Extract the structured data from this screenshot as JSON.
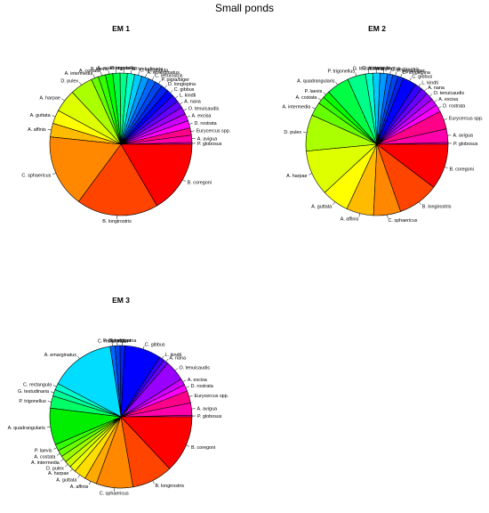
{
  "figure": {
    "title": "Small ponds"
  },
  "chart_data": [
    {
      "type": "pie",
      "title": "EM 1",
      "slices": [
        {
          "label": "P. globosus",
          "value": 0.4,
          "color": "#ff00c8"
        },
        {
          "label": "A. avigua",
          "value": 1.6,
          "color": "#ff00aa"
        },
        {
          "label": "Eurycercus spp.",
          "value": 1.6,
          "color": "#ff0088"
        },
        {
          "label": "D. rostrata",
          "value": 1.6,
          "color": "#ff00ff"
        },
        {
          "label": "A. excisa",
          "value": 1.6,
          "color": "#cc00ff"
        },
        {
          "label": "O. tenuicaudis",
          "value": 1.6,
          "color": "#9900ff"
        },
        {
          "label": "A. nana",
          "value": 1.6,
          "color": "#6600ff"
        },
        {
          "label": "L. kindti",
          "value": 1.6,
          "color": "#3300ff"
        },
        {
          "label": "C. gibbus",
          "value": 1.6,
          "color": "#0000ff"
        },
        {
          "label": "D. longispina",
          "value": 1.6,
          "color": "#0022ee"
        },
        {
          "label": "P. pigra/biger",
          "value": 1.6,
          "color": "#0044ee"
        },
        {
          "label": "C. rectirostris",
          "value": 1.6,
          "color": "#0066ff"
        },
        {
          "label": "A. emarginatus",
          "value": 1.6,
          "color": "#0099ff"
        },
        {
          "label": "C. rectangula",
          "value": 1.6,
          "color": "#00ccff"
        },
        {
          "label": "G. testudinaria",
          "value": 1.6,
          "color": "#00ffcc"
        },
        {
          "label": "P. trigonellus",
          "value": 1.6,
          "color": "#00ff88"
        },
        {
          "label": "A. quadrangularis",
          "value": 1.6,
          "color": "#00ff44"
        },
        {
          "label": "P. laevis",
          "value": 1.6,
          "color": "#00ff00"
        },
        {
          "label": "A. costata",
          "value": 1.6,
          "color": "#33ff00"
        },
        {
          "label": "A. intermedia",
          "value": 1.6,
          "color": "#66ff00"
        },
        {
          "label": "D. pulex",
          "value": 5,
          "color": "#aaff00"
        },
        {
          "label": "A. harpae",
          "value": 5,
          "color": "#ddff00"
        },
        {
          "label": "A. guttata",
          "value": 3,
          "color": "#ffff00"
        },
        {
          "label": "A. affinis",
          "value": 3,
          "color": "#ffbb00"
        },
        {
          "label": "C. sphaericus",
          "value": 16,
          "color": "#ff8800"
        },
        {
          "label": "B. longirostris",
          "value": 18,
          "color": "#ff4400"
        },
        {
          "label": "B. coregoni",
          "value": 16,
          "color": "#ff0000"
        }
      ]
    },
    {
      "type": "pie",
      "title": "EM 2",
      "slices": [
        {
          "label": "P. globosus",
          "value": 0.4,
          "color": "#ff00c8"
        },
        {
          "label": "A. avigua",
          "value": 3,
          "color": "#ff00aa"
        },
        {
          "label": "Eurycercus spp.",
          "value": 4,
          "color": "#ff0088"
        },
        {
          "label": "D. rostrata",
          "value": 1.6,
          "color": "#ff00ff"
        },
        {
          "label": "A. excisa",
          "value": 1.6,
          "color": "#cc00ff"
        },
        {
          "label": "O. tenuicaudis",
          "value": 1.6,
          "color": "#9900ff"
        },
        {
          "label": "A. nana",
          "value": 1.6,
          "color": "#6600ff"
        },
        {
          "label": "L. kindti",
          "value": 1.6,
          "color": "#3300ff"
        },
        {
          "label": "C. gibbus",
          "value": 3,
          "color": "#0000ff"
        },
        {
          "label": "D. longispina",
          "value": 1.2,
          "color": "#0022ee"
        },
        {
          "label": "P. pigra/biger",
          "value": 1.2,
          "color": "#0044ee"
        },
        {
          "label": "C. rectirostris",
          "value": 1.2,
          "color": "#0066ff"
        },
        {
          "label": "A. emarginatus",
          "value": 1.6,
          "color": "#0099ff"
        },
        {
          "label": "C. rectangula",
          "value": 1.6,
          "color": "#00ccff"
        },
        {
          "label": "G. testudinaria",
          "value": 1.6,
          "color": "#00ffcc"
        },
        {
          "label": "P. trigonellus",
          "value": 4,
          "color": "#00ff88"
        },
        {
          "label": "A. quadrangularis",
          "value": 5,
          "color": "#00ff44"
        },
        {
          "label": "P. laevis",
          "value": 1.6,
          "color": "#00ff00"
        },
        {
          "label": "A. costata",
          "value": 1.6,
          "color": "#33ff00"
        },
        {
          "label": "A. intermedia",
          "value": 3,
          "color": "#66ff00"
        },
        {
          "label": "D. pulex",
          "value": 8,
          "color": "#aaff00"
        },
        {
          "label": "A. harpae",
          "value": 10,
          "color": "#ddff00"
        },
        {
          "label": "A. guttata",
          "value": 6,
          "color": "#ffff00"
        },
        {
          "label": "A. affinis",
          "value": 6,
          "color": "#ffbb00"
        },
        {
          "label": "C. sphaericus",
          "value": 6,
          "color": "#ff8800"
        },
        {
          "label": "B. longirostris",
          "value": 9,
          "color": "#ff4400"
        },
        {
          "label": "B. coregoni",
          "value": 10,
          "color": "#ff0000"
        }
      ]
    },
    {
      "type": "pie",
      "title": "EM 3",
      "slices": [
        {
          "label": "P. globosus",
          "value": 0.4,
          "color": "#ff00c8"
        },
        {
          "label": "A. avigua",
          "value": 3,
          "color": "#ff00aa"
        },
        {
          "label": "Eurycercus spp.",
          "value": 3,
          "color": "#ff0088"
        },
        {
          "label": "D. rostrata",
          "value": 1.6,
          "color": "#ff00ff"
        },
        {
          "label": "A. excisa",
          "value": 1.6,
          "color": "#cc00ff"
        },
        {
          "label": "O. tenuicaudis",
          "value": 5,
          "color": "#9900ff"
        },
        {
          "label": "A. nana",
          "value": 1.2,
          "color": "#6600ff"
        },
        {
          "label": "L. kindti",
          "value": 1.2,
          "color": "#3300ff"
        },
        {
          "label": "C. gibbus",
          "value": 9,
          "color": "#0000ff"
        },
        {
          "label": "D. longispina",
          "value": 1.2,
          "color": "#0022ee"
        },
        {
          "label": "P. pigra/biger",
          "value": 1.2,
          "color": "#0044ee"
        },
        {
          "label": "C. rectirostris",
          "value": 1.2,
          "color": "#0066ff"
        },
        {
          "label": "A. emarginatus",
          "value": 16,
          "color": "#00ddff"
        },
        {
          "label": "C. rectangula",
          "value": 1.6,
          "color": "#00ffcc"
        },
        {
          "label": "G. testudinaria",
          "value": 1.6,
          "color": "#00ff99"
        },
        {
          "label": "P. trigonellus",
          "value": 3,
          "color": "#00ff66"
        },
        {
          "label": "A. quadrangularis",
          "value": 9,
          "color": "#00ee00"
        },
        {
          "label": "P. laevis",
          "value": 1.6,
          "color": "#33ff00"
        },
        {
          "label": "A. costata",
          "value": 1.6,
          "color": "#66ff00"
        },
        {
          "label": "A. intermedia",
          "value": 1.6,
          "color": "#99ff00"
        },
        {
          "label": "D. pulex",
          "value": 1.6,
          "color": "#ccff00"
        },
        {
          "label": "A. harpae",
          "value": 1.6,
          "color": "#eeff00"
        },
        {
          "label": "A. guttata",
          "value": 3,
          "color": "#ffdd00"
        },
        {
          "label": "A. affinis",
          "value": 3,
          "color": "#ffaa00"
        },
        {
          "label": "C. sphaericus",
          "value": 9,
          "color": "#ff8800"
        },
        {
          "label": "B. longirostris",
          "value": 10,
          "color": "#ff4400"
        },
        {
          "label": "B. coregoni",
          "value": 14,
          "color": "#ff0000"
        }
      ]
    }
  ]
}
